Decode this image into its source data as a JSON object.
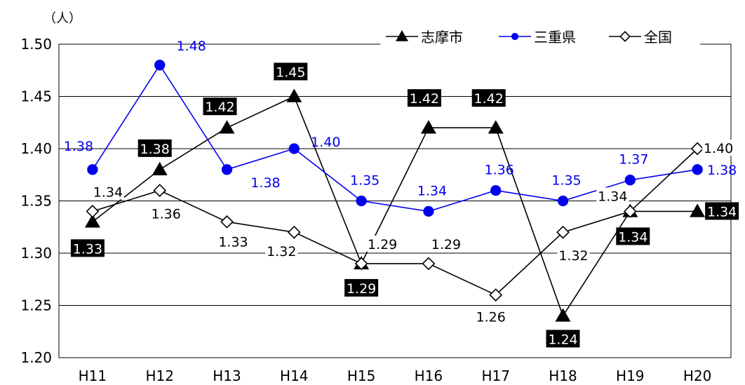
{
  "chart_data": {
    "type": "line",
    "unit_label": "（人）",
    "categories": [
      "H11",
      "H12",
      "H13",
      "H14",
      "H15",
      "H16",
      "H17",
      "H18",
      "H19",
      "H20"
    ],
    "ylim": [
      1.2,
      1.5
    ],
    "yticks": [
      "1.50",
      "1.45",
      "1.40",
      "1.35",
      "1.30",
      "1.25",
      "1.20"
    ],
    "grid": true,
    "legend_position": "top-right",
    "series": [
      {
        "name": "志摩市",
        "color": "#000000",
        "marker": "triangle",
        "values": [
          1.33,
          1.38,
          1.42,
          1.45,
          1.29,
          1.42,
          1.42,
          1.24,
          1.34,
          1.34
        ],
        "labels": [
          "1.33",
          "1.38",
          "1.42",
          "1.45",
          "1.29",
          "1.42",
          "1.42",
          "1.24",
          "1.34",
          "1.34"
        ]
      },
      {
        "name": "三重県",
        "color": "#0000ee",
        "marker": "circle",
        "values": [
          1.38,
          1.48,
          1.38,
          1.4,
          1.35,
          1.34,
          1.36,
          1.35,
          1.37,
          1.38
        ],
        "labels": [
          "1.38",
          "1.48",
          "1.38",
          "1.40",
          "1.35",
          "1.34",
          "1.36",
          "1.35",
          "1.37",
          "1.38"
        ]
      },
      {
        "name": "全国",
        "color": "#000000",
        "marker": "diamond",
        "values": [
          1.34,
          1.36,
          1.33,
          1.32,
          1.29,
          1.29,
          1.26,
          1.32,
          1.34,
          1.4
        ],
        "labels": [
          "1.34",
          "1.36",
          "1.33",
          "1.32",
          "1.29",
          "1.29",
          "1.26",
          "1.32",
          "1.34",
          "1.40"
        ]
      }
    ]
  }
}
